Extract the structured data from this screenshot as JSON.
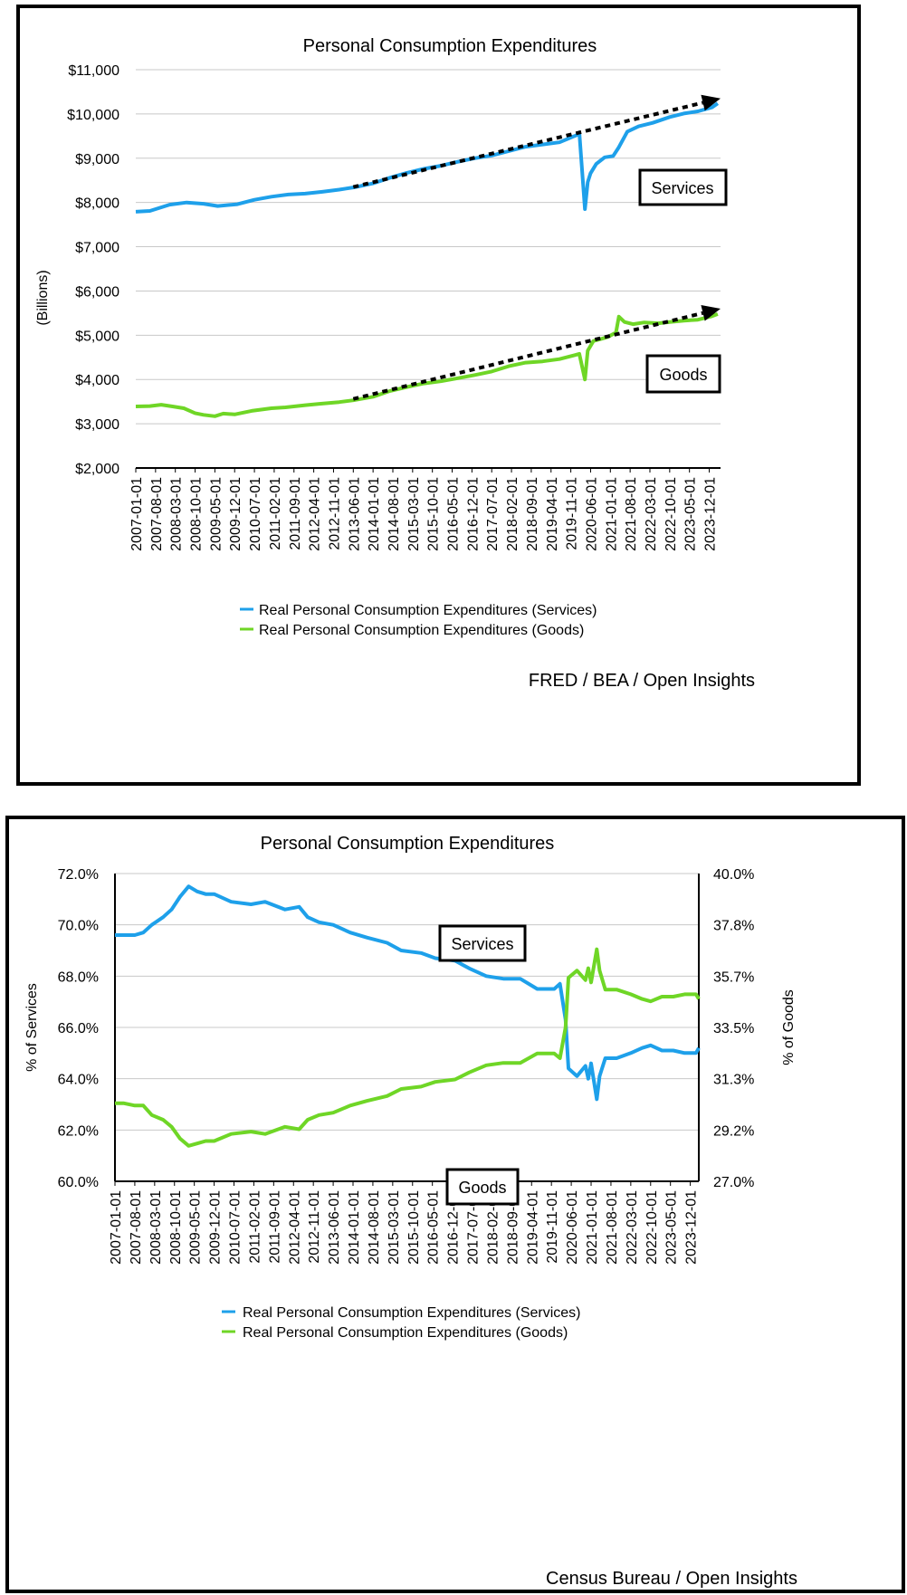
{
  "chart_data": [
    {
      "type": "line",
      "title": "Personal Consumption Expenditures",
      "ylabel": "(Billions)",
      "ylim": [
        2000,
        11000
      ],
      "y_ticks": [
        "$2,000",
        "$3,000",
        "$4,000",
        "$5,000",
        "$6,000",
        "$7,000",
        "$8,000",
        "$9,000",
        "$10,000",
        "$11,000"
      ],
      "x_range": [
        "2007-01-01",
        "2024-04-01"
      ],
      "x_ticks": [
        "2007-01-01",
        "2007-08-01",
        "2008-03-01",
        "2008-10-01",
        "2009-05-01",
        "2009-12-01",
        "2010-07-01",
        "2011-02-01",
        "2011-09-01",
        "2012-04-01",
        "2012-11-01",
        "2013-06-01",
        "2014-01-01",
        "2014-08-01",
        "2015-03-01",
        "2015-10-01",
        "2016-05-01",
        "2016-12-01",
        "2017-07-01",
        "2018-02-01",
        "2018-09-01",
        "2019-04-01",
        "2019-11-01",
        "2020-06-01",
        "2021-01-01",
        "2021-08-01",
        "2022-03-01",
        "2022-10-01",
        "2023-05-01",
        "2023-12-01"
      ],
      "grid": true,
      "legend_position": "bottom",
      "series": [
        {
          "name": "Real Personal Consumption Expenditures (Services)",
          "color": "#1ea0ea",
          "x": [
            "2007-01-01",
            "2007-06-01",
            "2008-01-01",
            "2008-07-01",
            "2009-01-01",
            "2009-06-01",
            "2010-01-01",
            "2010-07-01",
            "2011-01-01",
            "2011-07-01",
            "2012-01-01",
            "2012-07-01",
            "2013-01-01",
            "2013-07-01",
            "2014-01-01",
            "2014-07-01",
            "2015-01-01",
            "2015-07-01",
            "2016-01-01",
            "2016-07-01",
            "2017-01-01",
            "2017-07-01",
            "2018-01-01",
            "2018-07-01",
            "2019-01-01",
            "2019-07-01",
            "2020-01-01",
            "2020-02-01",
            "2020-04-01",
            "2020-05-01",
            "2020-06-01",
            "2020-08-01",
            "2020-11-01",
            "2021-02-01",
            "2021-04-01",
            "2021-07-01",
            "2021-11-01",
            "2022-04-01",
            "2022-10-01",
            "2023-03-01",
            "2023-08-01",
            "2024-01-01",
            "2024-03-01"
          ],
          "values": [
            7790,
            7810,
            7950,
            8000,
            7970,
            7920,
            7960,
            8060,
            8130,
            8180,
            8200,
            8240,
            8290,
            8350,
            8430,
            8560,
            8670,
            8760,
            8830,
            8920,
            9000,
            9060,
            9160,
            9260,
            9310,
            9360,
            9520,
            9580,
            7850,
            8460,
            8660,
            8870,
            9020,
            9050,
            9250,
            9600,
            9720,
            9800,
            9930,
            10010,
            10060,
            10150,
            10240
          ]
        },
        {
          "name": "Real Personal Consumption Expenditures (Goods)",
          "color": "#6fd626",
          "x": [
            "2007-01-01",
            "2007-06-01",
            "2007-10-01",
            "2008-02-01",
            "2008-06-01",
            "2008-10-01",
            "2009-01-01",
            "2009-05-01",
            "2009-08-01",
            "2009-12-01",
            "2010-06-01",
            "2011-01-01",
            "2011-06-01",
            "2012-01-01",
            "2012-06-01",
            "2013-01-01",
            "2013-06-01",
            "2014-01-01",
            "2014-07-01",
            "2015-01-01",
            "2015-07-01",
            "2016-01-01",
            "2016-07-01",
            "2017-01-01",
            "2017-07-01",
            "2018-01-01",
            "2018-07-01",
            "2019-01-01",
            "2019-07-01",
            "2020-01-01",
            "2020-02-01",
            "2020-04-01",
            "2020-05-01",
            "2020-07-01",
            "2020-10-01",
            "2020-12-01",
            "2021-03-01",
            "2021-04-01",
            "2021-06-01",
            "2021-09-01",
            "2022-01-01",
            "2022-06-01",
            "2022-10-01",
            "2023-03-01",
            "2023-08-01",
            "2024-01-01",
            "2024-03-01"
          ],
          "values": [
            3390,
            3400,
            3430,
            3390,
            3350,
            3240,
            3200,
            3170,
            3230,
            3210,
            3290,
            3350,
            3370,
            3420,
            3450,
            3490,
            3530,
            3610,
            3740,
            3830,
            3910,
            3960,
            4030,
            4100,
            4180,
            4300,
            4380,
            4410,
            4460,
            4560,
            4580,
            4000,
            4650,
            4870,
            4920,
            4960,
            5060,
            5420,
            5300,
            5250,
            5290,
            5270,
            5300,
            5330,
            5350,
            5430,
            5480
          ]
        }
      ],
      "trend_arrows": [
        {
          "x": [
            "2013-06-01",
            "2024-04-01"
          ],
          "values": [
            8350,
            10350
          ]
        },
        {
          "x": [
            "2013-06-01",
            "2024-04-01"
          ],
          "values": [
            3560,
            5600
          ]
        }
      ],
      "annotations": [
        "Services",
        "Goods"
      ],
      "source": "FRED / BEA / Open Insights"
    },
    {
      "type": "line",
      "title": "Personal Consumption Expenditures",
      "ylabel": "% of Services",
      "y2label": "% of Goods",
      "ylim": [
        60,
        72
      ],
      "y2lim": [
        27,
        40
      ],
      "y_ticks": [
        "60.0%",
        "62.0%",
        "64.0%",
        "66.0%",
        "68.0%",
        "70.0%",
        "72.0%"
      ],
      "y2_ticks": [
        "27.0%",
        "29.2%",
        "31.3%",
        "33.5%",
        "35.7%",
        "37.8%",
        "40.0%"
      ],
      "x_range": [
        "2007-01-01",
        "2024-03-01"
      ],
      "x_ticks": [
        "2007-01-01",
        "2007-08-01",
        "2008-03-01",
        "2008-10-01",
        "2009-05-01",
        "2009-12-01",
        "2010-07-01",
        "2011-02-01",
        "2011-09-01",
        "2012-04-01",
        "2012-11-01",
        "2013-06-01",
        "2014-01-01",
        "2014-08-01",
        "2015-03-01",
        "2015-10-01",
        "2016-05-01",
        "2016-12-01",
        "2017-07-01",
        "2018-02-01",
        "2018-09-01",
        "2019-04-01",
        "2019-11-01",
        "2020-06-01",
        "2021-01-01",
        "2021-08-01",
        "2022-03-01",
        "2022-10-01",
        "2023-05-01",
        "2023-12-01"
      ],
      "grid": true,
      "legend_position": "bottom",
      "series": [
        {
          "name": "Real Personal Consumption Expenditures (Services)",
          "color": "#1ea0ea",
          "axis": "left",
          "x": [
            "2007-01-01",
            "2007-04-01",
            "2007-08-01",
            "2007-11-01",
            "2008-02-01",
            "2008-06-01",
            "2008-09-01",
            "2008-12-01",
            "2009-03-01",
            "2009-06-01",
            "2009-09-01",
            "2009-12-01",
            "2010-06-01",
            "2011-01-01",
            "2011-06-01",
            "2012-01-01",
            "2012-06-01",
            "2012-09-01",
            "2013-01-01",
            "2013-06-01",
            "2013-12-01",
            "2014-06-01",
            "2015-01-01",
            "2015-06-01",
            "2016-01-01",
            "2016-06-01",
            "2017-01-01",
            "2017-06-01",
            "2017-12-01",
            "2018-06-01",
            "2018-12-01",
            "2019-06-01",
            "2019-12-01",
            "2020-02-01",
            "2020-04-01",
            "2020-05-01",
            "2020-08-01",
            "2020-11-01",
            "2020-12-01",
            "2021-01-01",
            "2021-03-01",
            "2021-04-01",
            "2021-06-01",
            "2021-10-01",
            "2022-03-01",
            "2022-07-01",
            "2022-10-01",
            "2023-02-01",
            "2023-06-01",
            "2023-10-01",
            "2024-02-01",
            "2024-03-01"
          ],
          "values": [
            69.6,
            69.6,
            69.6,
            69.7,
            70.0,
            70.3,
            70.6,
            71.1,
            71.5,
            71.3,
            71.2,
            71.2,
            70.9,
            70.8,
            70.9,
            70.6,
            70.7,
            70.3,
            70.1,
            70.0,
            69.7,
            69.5,
            69.3,
            69.0,
            68.9,
            68.7,
            68.6,
            68.3,
            68.0,
            67.9,
            67.9,
            67.5,
            67.5,
            67.7,
            66.3,
            64.4,
            64.1,
            64.5,
            64.0,
            64.6,
            63.2,
            64.1,
            64.8,
            64.8,
            65.0,
            65.2,
            65.3,
            65.1,
            65.1,
            65.0,
            65.0,
            65.2
          ]
        },
        {
          "name": "Real Personal Consumption Expenditures (Goods)",
          "color": "#6fd626",
          "axis": "right",
          "x": [
            "2007-01-01",
            "2007-04-01",
            "2007-08-01",
            "2007-11-01",
            "2008-02-01",
            "2008-06-01",
            "2008-09-01",
            "2008-12-01",
            "2009-03-01",
            "2009-06-01",
            "2009-09-01",
            "2009-12-01",
            "2010-06-01",
            "2011-01-01",
            "2011-06-01",
            "2012-01-01",
            "2012-06-01",
            "2012-09-01",
            "2013-01-01",
            "2013-06-01",
            "2013-12-01",
            "2014-06-01",
            "2015-01-01",
            "2015-06-01",
            "2016-01-01",
            "2016-06-01",
            "2017-01-01",
            "2017-06-01",
            "2017-12-01",
            "2018-06-01",
            "2018-12-01",
            "2019-06-01",
            "2019-12-01",
            "2020-02-01",
            "2020-04-01",
            "2020-05-01",
            "2020-08-01",
            "2020-11-01",
            "2020-12-01",
            "2021-01-01",
            "2021-03-01",
            "2021-04-01",
            "2021-06-01",
            "2021-10-01",
            "2022-03-01",
            "2022-07-01",
            "2022-10-01",
            "2023-02-01",
            "2023-06-01",
            "2023-10-01",
            "2024-02-01",
            "2024-03-01"
          ],
          "values": [
            30.3,
            30.3,
            30.2,
            30.2,
            29.8,
            29.6,
            29.3,
            28.8,
            28.5,
            28.6,
            28.7,
            28.7,
            29.0,
            29.1,
            29.0,
            29.3,
            29.2,
            29.6,
            29.8,
            29.9,
            30.2,
            30.4,
            30.6,
            30.9,
            31.0,
            31.2,
            31.3,
            31.6,
            31.9,
            32.0,
            32.0,
            32.4,
            32.4,
            32.2,
            33.5,
            35.6,
            35.9,
            35.5,
            36.0,
            35.4,
            36.8,
            35.9,
            35.1,
            35.1,
            34.9,
            34.7,
            34.6,
            34.8,
            34.8,
            34.9,
            34.9,
            34.7
          ]
        }
      ],
      "annotations": [
        "Services",
        "Goods"
      ],
      "source": "Census Bureau / Open Insights"
    }
  ]
}
